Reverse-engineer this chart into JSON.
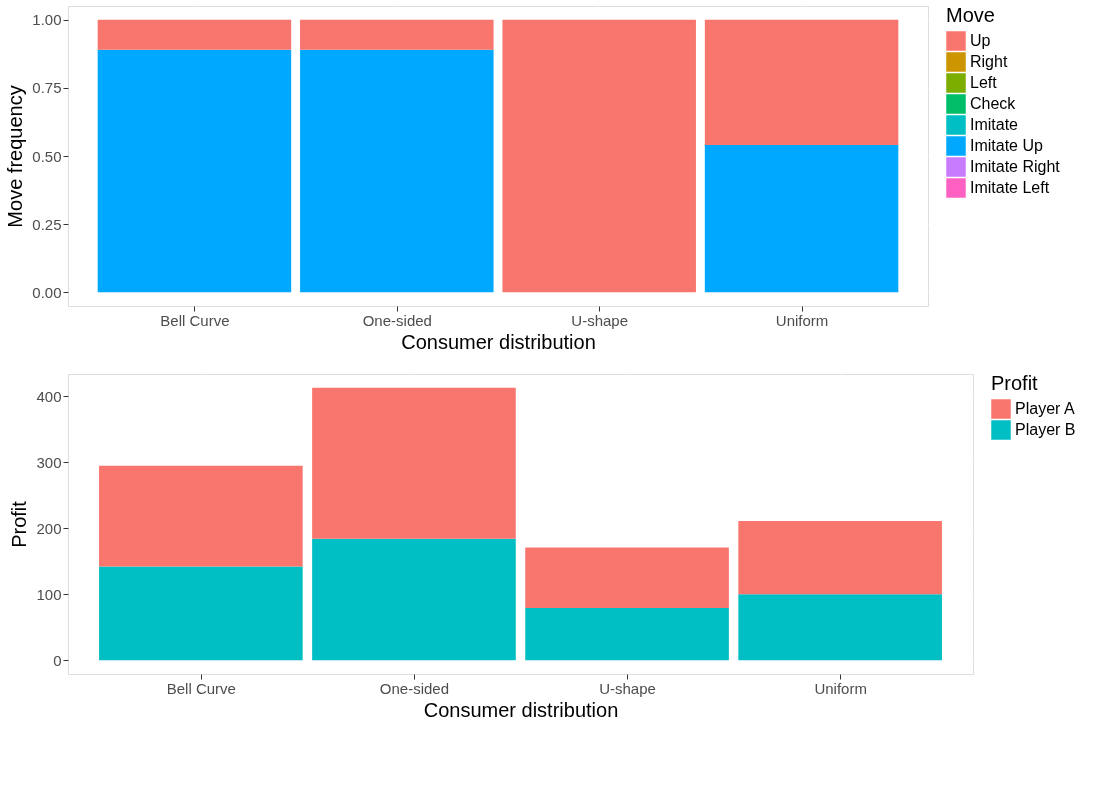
{
  "chart_data": [
    {
      "type": "bar",
      "stacked": true,
      "categories": [
        "Bell Curve",
        "One‑sided",
        "U‑shape",
        "Uniform"
      ],
      "xlabel": "Consumer distribution",
      "ylabel": "Move frequency",
      "legend_title": "Move",
      "legend": "right",
      "grid": true,
      "ylim": [
        -0.05,
        1.05
      ],
      "yticks": [
        {
          "value": 0,
          "label": "0.00"
        },
        {
          "value": 0.25,
          "label": "0.25"
        },
        {
          "value": 0.5,
          "label": "0.50"
        },
        {
          "value": 0.75,
          "label": "0.75"
        },
        {
          "value": 1,
          "label": "1.00"
        }
      ],
      "series": [
        {
          "name": "Imitate Left",
          "color": "#ff61c3",
          "values": [
            0,
            0,
            0,
            0
          ]
        },
        {
          "name": "Imitate Right",
          "color": "#c77cff",
          "values": [
            0,
            0,
            0,
            0
          ]
        },
        {
          "name": "Imitate Up",
          "color": "#00a9ff",
          "values": [
            0.89,
            0.89,
            0,
            0.54
          ]
        },
        {
          "name": "Imitate",
          "color": "#00bfc4",
          "values": [
            0,
            0,
            0,
            0
          ]
        },
        {
          "name": "Check",
          "color": "#00be67",
          "values": [
            0,
            0,
            0,
            0
          ]
        },
        {
          "name": "Left",
          "color": "#7cae00",
          "values": [
            0,
            0,
            0,
            0
          ]
        },
        {
          "name": "Right",
          "color": "#cd9600",
          "values": [
            0,
            0,
            0,
            0
          ]
        },
        {
          "name": "Up",
          "color": "#f8766d",
          "values": [
            0.11,
            0.11,
            1.0,
            0.46
          ]
        }
      ]
    },
    {
      "type": "bar",
      "stacked": true,
      "categories": [
        "Bell Curve",
        "One‑sided",
        "U‑shape",
        "Uniform"
      ],
      "xlabel": "Consumer distribution",
      "ylabel": "Profit",
      "legend_title": "Profit",
      "legend": "right",
      "grid": true,
      "ylim": [
        -21,
        434
      ],
      "yticks": [
        0,
        100,
        200,
        300,
        400
      ],
      "series": [
        {
          "name": "Player B",
          "color": "#00bfc4",
          "values": [
            142,
            184,
            79,
            100
          ]
        },
        {
          "name": "Player A",
          "color": "#f8766d",
          "values": [
            153,
            229,
            92,
            111
          ]
        }
      ]
    }
  ]
}
